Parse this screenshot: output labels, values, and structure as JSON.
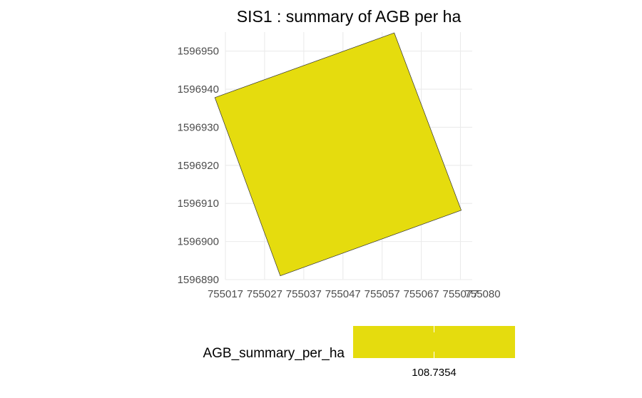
{
  "chart_data": {
    "type": "map",
    "title": "SIS1 : summary of AGB per ha",
    "xlim": [
      755017,
      755080
    ],
    "ylim": [
      1596890,
      1596955
    ],
    "x_ticks": [
      755017,
      755027,
      755037,
      755047,
      755057,
      755067,
      755077
    ],
    "x_tick_labels": [
      "755017",
      "755027",
      "755037",
      "755047",
      "755057",
      "755067",
      "755077"
    ],
    "x_extra_label": "755080",
    "y_ticks": [
      1596890,
      1596900,
      1596910,
      1596920,
      1596930,
      1596940,
      1596950
    ],
    "y_tick_labels": [
      "1596890",
      "1596900",
      "1596910",
      "1596920",
      "1596930",
      "1596940",
      "1596950"
    ],
    "grid": true,
    "polygon": {
      "value": 108.7354,
      "fill": "#e5dc0e",
      "stroke": "#333333",
      "vertices": [
        [
          755014.3,
          1596937.8
        ],
        [
          755060.1,
          1596954.8
        ],
        [
          755077.2,
          1596908.2
        ],
        [
          755031.0,
          1596891.0
        ]
      ]
    },
    "legend": {
      "title": "AGB_summary_per_ha",
      "label": "108.7354",
      "color": "#e5dc0e",
      "position": "bottom"
    }
  }
}
